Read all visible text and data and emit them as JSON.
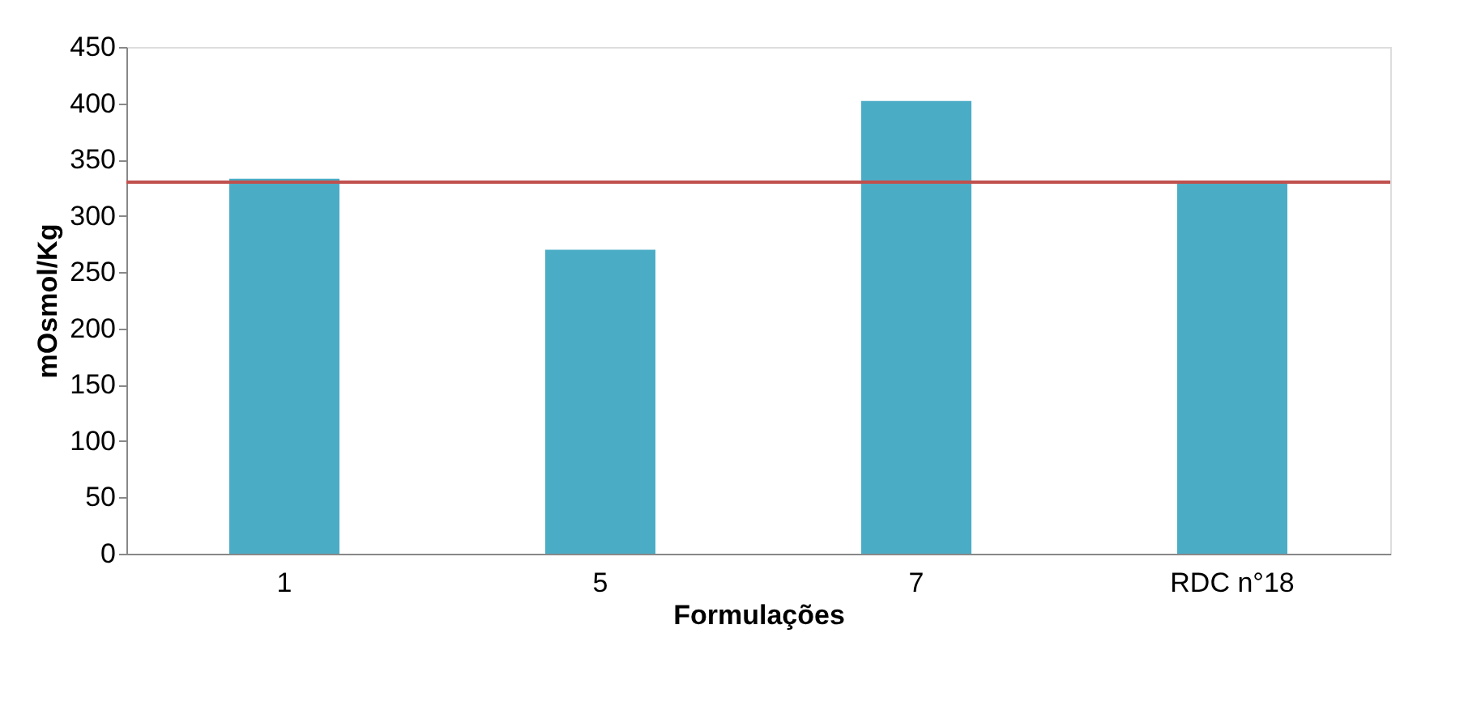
{
  "chart_data": {
    "type": "bar",
    "xlabel": "Formulações",
    "ylabel": "mOsmol/Kg",
    "categories": [
      "1",
      "5",
      "7",
      "RDC n°18"
    ],
    "values": [
      333,
      270,
      402,
      329
    ],
    "color": "#4bacc6",
    "ylim": [
      0,
      450
    ],
    "yticks": [
      0,
      50,
      100,
      150,
      200,
      250,
      300,
      350,
      400,
      450
    ],
    "grid": false,
    "ref_lines": [
      {
        "axis": "y",
        "value": 330,
        "color": "#c0504d"
      }
    ]
  }
}
